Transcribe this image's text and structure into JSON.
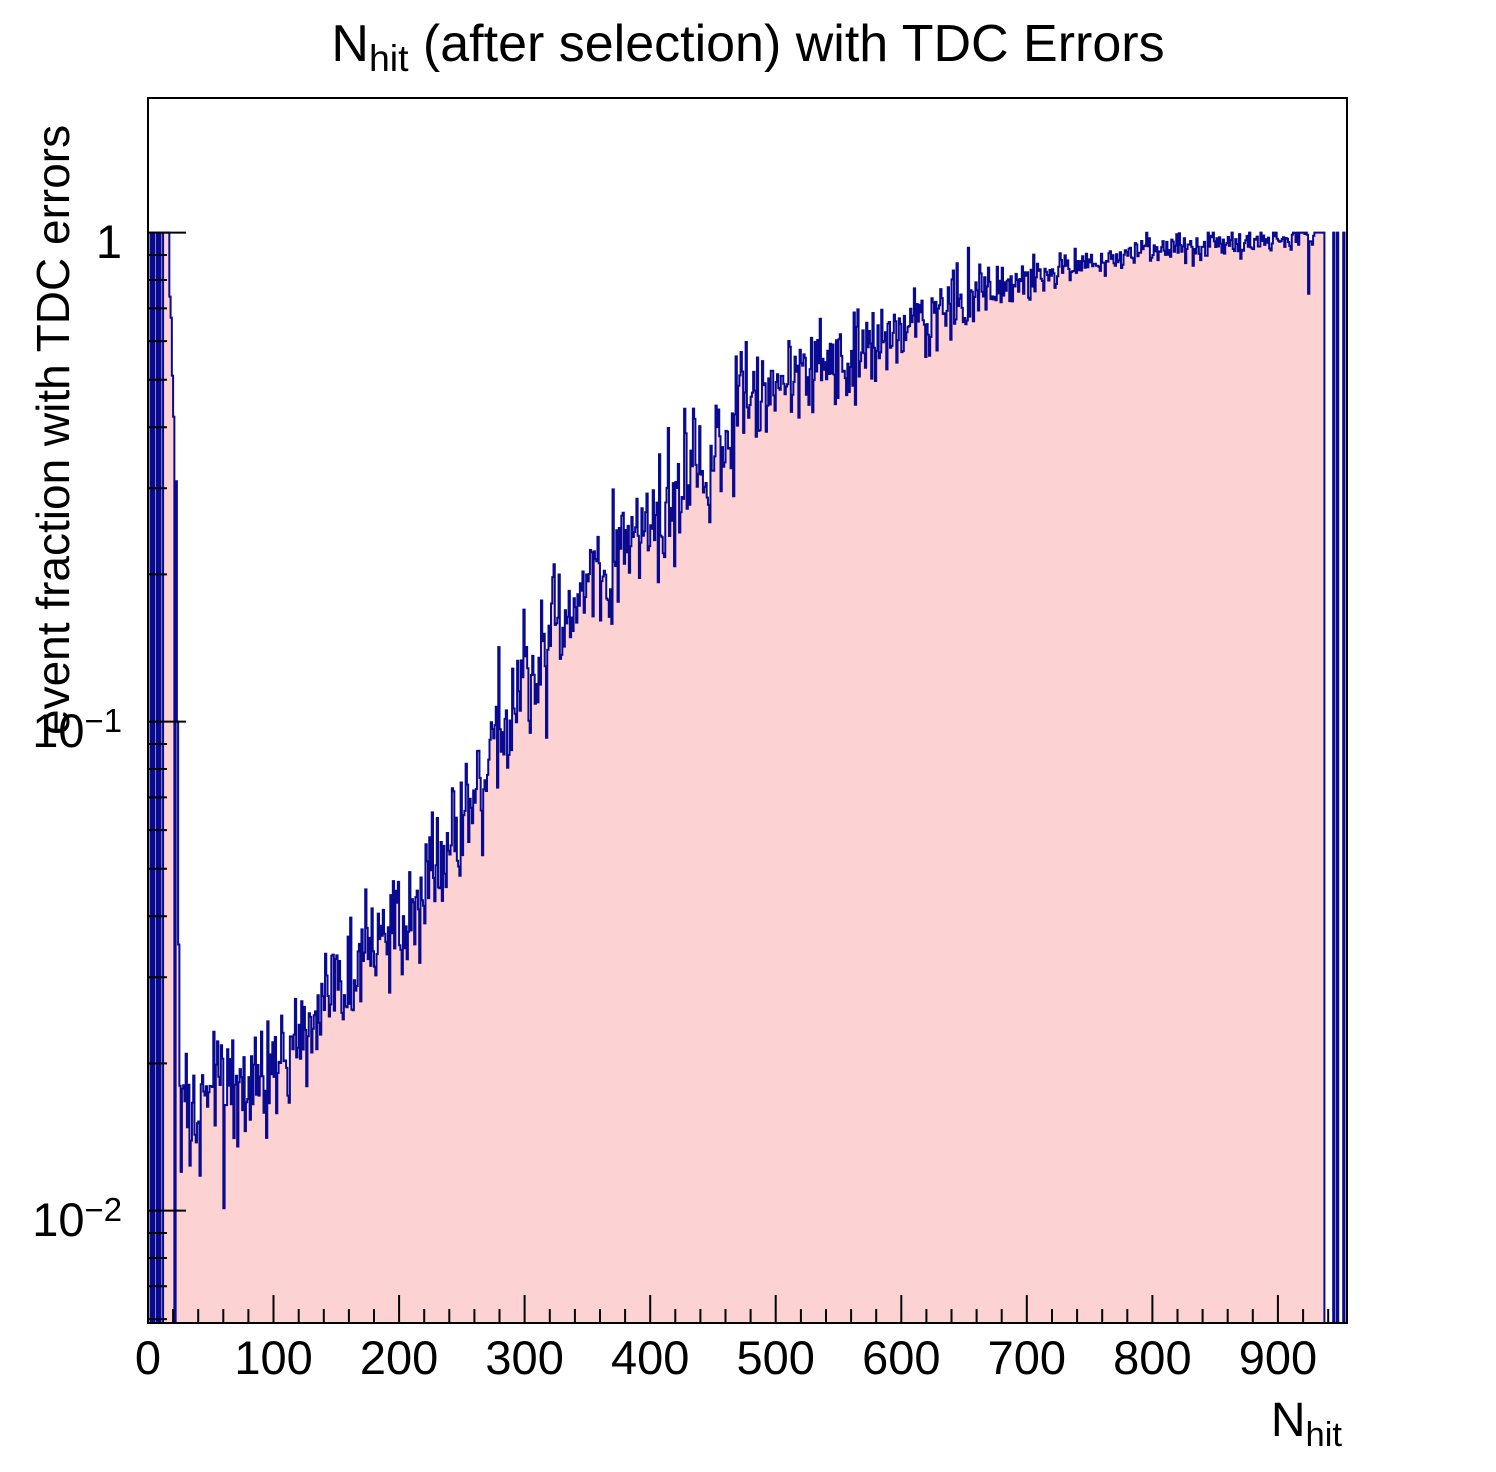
{
  "title": {
    "prefix": "N",
    "subscript": "hit",
    "suffix": " (after selection) with TDC Errors"
  },
  "y_axis": {
    "title": "event fraction with TDC errors",
    "scale": "log",
    "tick_labels": [
      {
        "base": "1",
        "exp": "",
        "value": 1
      },
      {
        "base": "10",
        "exp": "−1",
        "value": 0.1
      },
      {
        "base": "10",
        "exp": "−2",
        "value": 0.01
      }
    ],
    "minor_ticks": [
      0.9,
      0.8,
      0.7,
      0.6,
      0.5,
      0.4,
      0.3,
      0.2,
      0.09,
      0.08,
      0.07,
      0.06,
      0.05,
      0.04,
      0.03,
      0.02,
      0.009,
      0.008,
      0.007,
      0.006
    ]
  },
  "x_axis": {
    "title_prefix": "N",
    "title_subscript": "hit",
    "tick_labels": [
      "0",
      "100",
      "200",
      "300",
      "400",
      "500",
      "600",
      "700",
      "800",
      "900"
    ],
    "major_tick_values": [
      0,
      100,
      200,
      300,
      400,
      500,
      600,
      700,
      800,
      900
    ],
    "minor_tick_step": 20
  },
  "chart_data": {
    "type": "bar",
    "subtype": "filled-step-histogram",
    "title": "N_hit (after selection) with TDC Errors",
    "xlabel": "N_hit",
    "ylabel": "event fraction with TDC errors",
    "y_scale": "log",
    "x_range": [
      0,
      955
    ],
    "y_range": [
      0.00589,
      1.885
    ],
    "n_bins": 955,
    "bin_width": 1,
    "grid": false,
    "legend": false,
    "trend_points": [
      [
        27,
        0.015
      ],
      [
        28,
        0.016
      ],
      [
        30,
        0.017
      ],
      [
        32,
        0.0145
      ],
      [
        34,
        0.015
      ],
      [
        36,
        0.016
      ],
      [
        40,
        0.017
      ],
      [
        44,
        0.018
      ],
      [
        48,
        0.0195
      ],
      [
        52,
        0.02
      ],
      [
        56,
        0.0195
      ],
      [
        60,
        0.018
      ],
      [
        64,
        0.0175
      ],
      [
        70,
        0.018
      ],
      [
        76,
        0.0185
      ],
      [
        82,
        0.0185
      ],
      [
        88,
        0.019
      ],
      [
        94,
        0.0195
      ],
      [
        100,
        0.02
      ],
      [
        108,
        0.0205
      ],
      [
        116,
        0.021
      ],
      [
        124,
        0.0225
      ],
      [
        132,
        0.024
      ],
      [
        140,
        0.026
      ],
      [
        148,
        0.028
      ],
      [
        156,
        0.029
      ],
      [
        164,
        0.031
      ],
      [
        172,
        0.033
      ],
      [
        180,
        0.035
      ],
      [
        190,
        0.036
      ],
      [
        200,
        0.038
      ],
      [
        210,
        0.042
      ],
      [
        220,
        0.047
      ],
      [
        230,
        0.052
      ],
      [
        240,
        0.057
      ],
      [
        250,
        0.065
      ],
      [
        260,
        0.075
      ],
      [
        270,
        0.082
      ],
      [
        280,
        0.09
      ],
      [
        290,
        0.1
      ],
      [
        300,
        0.115
      ],
      [
        310,
        0.135
      ],
      [
        320,
        0.15
      ],
      [
        330,
        0.16
      ],
      [
        340,
        0.17
      ],
      [
        350,
        0.185
      ],
      [
        360,
        0.2
      ],
      [
        370,
        0.21
      ],
      [
        380,
        0.24
      ],
      [
        390,
        0.25
      ],
      [
        400,
        0.27
      ],
      [
        410,
        0.28
      ],
      [
        420,
        0.3
      ],
      [
        430,
        0.32
      ],
      [
        440,
        0.34
      ],
      [
        450,
        0.36
      ],
      [
        460,
        0.38
      ],
      [
        470,
        0.42
      ],
      [
        480,
        0.46
      ],
      [
        490,
        0.48
      ],
      [
        500,
        0.5
      ],
      [
        510,
        0.52
      ],
      [
        520,
        0.52
      ],
      [
        530,
        0.53
      ],
      [
        540,
        0.545
      ],
      [
        550,
        0.56
      ],
      [
        560,
        0.55
      ],
      [
        570,
        0.57
      ],
      [
        580,
        0.6
      ],
      [
        590,
        0.62
      ],
      [
        600,
        0.64
      ],
      [
        615,
        0.665
      ],
      [
        630,
        0.7
      ],
      [
        645,
        0.72
      ],
      [
        660,
        0.74
      ],
      [
        675,
        0.765
      ],
      [
        690,
        0.79
      ],
      [
        705,
        0.81
      ],
      [
        720,
        0.83
      ],
      [
        735,
        0.855
      ],
      [
        750,
        0.87
      ],
      [
        765,
        0.885
      ],
      [
        780,
        0.9
      ],
      [
        795,
        0.915
      ],
      [
        810,
        0.925
      ],
      [
        825,
        0.935
      ],
      [
        840,
        0.945
      ],
      [
        855,
        0.95
      ],
      [
        870,
        0.955
      ],
      [
        885,
        0.96
      ],
      [
        900,
        0.965
      ],
      [
        910,
        0.97
      ],
      [
        920,
        0.98
      ],
      [
        929,
        0.99
      ]
    ],
    "explicit_bins": {
      "0": 0,
      "1": 0,
      "2": 1,
      "3": 0,
      "4": 1,
      "5": 0,
      "6": 0,
      "7": 1,
      "8": 0,
      "9": 1,
      "10": 0,
      "11": 0,
      "12": 1,
      "13": 1,
      "14": 1,
      "15": 1,
      "16": 1,
      "17": 0.74,
      "18": 0.67,
      "19": 0.51,
      "20": 0.42,
      "21": 0,
      "22": 0.31,
      "23": 0.1,
      "24": 0.035,
      "25": 0.018,
      "26": 0.012,
      "923": 0.99,
      "924": 0.75,
      "925": 0.96,
      "930": 1,
      "931": 1,
      "932": 1,
      "933": 1,
      "934": 1,
      "935": 1,
      "936": 1,
      "937": 0,
      "938": 0,
      "939": 0,
      "940": 0,
      "941": 0,
      "942": 0,
      "943": 0,
      "944": 1,
      "945": 0,
      "946": 0,
      "947": 1,
      "948": 0,
      "949": 0,
      "950": 0,
      "951": 0,
      "952": 1,
      "953": 0,
      "954": 0
    },
    "noise": {
      "seed": 77,
      "sigma_log10_base": 0.058,
      "sigma_log10_min": 0.014,
      "taper_start": 0.5,
      "spike_prob": 0.03,
      "spike_scale": 2.0,
      "clip_max": 1.0,
      "clip_min": 0.0062
    },
    "colors": {
      "fill": "#fcd2d2",
      "line": "#0a0a90",
      "frame": "#000000",
      "text": "#000000"
    }
  }
}
